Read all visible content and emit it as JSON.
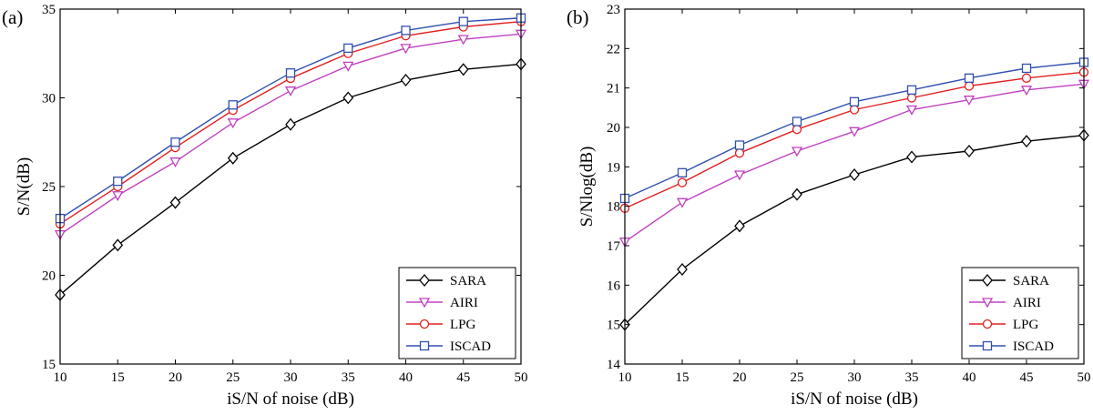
{
  "chart_data": [
    {
      "type": "line",
      "panel_label": "(a)",
      "xlabel": "iS/N of noise (dB)",
      "ylabel": "S/N(dB)",
      "xlim": [
        10,
        50
      ],
      "ylim": [
        15,
        35
      ],
      "xticks": [
        10,
        15,
        20,
        25,
        30,
        35,
        40,
        45,
        50
      ],
      "yticks": [
        15,
        20,
        25,
        30,
        35
      ],
      "legend_position": "bottom-right",
      "x": [
        10,
        15,
        20,
        25,
        30,
        35,
        40,
        45,
        50
      ],
      "series": [
        {
          "name": "SARA",
          "color": "#000000",
          "marker": "diamond",
          "values": [
            18.9,
            21.7,
            24.1,
            26.6,
            28.5,
            30.0,
            31.0,
            31.6,
            31.9
          ]
        },
        {
          "name": "AIRI",
          "color": "#c040c0",
          "marker": "triangle-down",
          "values": [
            22.3,
            24.5,
            26.4,
            28.6,
            30.4,
            31.8,
            32.8,
            33.3,
            33.6
          ]
        },
        {
          "name": "LPG",
          "color": "#e02020",
          "marker": "circle",
          "values": [
            22.9,
            25.0,
            27.2,
            29.3,
            31.1,
            32.5,
            33.5,
            34.0,
            34.3
          ]
        },
        {
          "name": "ISCAD",
          "color": "#3050b0",
          "marker": "square",
          "values": [
            23.2,
            25.3,
            27.5,
            29.6,
            31.4,
            32.8,
            33.8,
            34.3,
            34.5
          ]
        }
      ]
    },
    {
      "type": "line",
      "panel_label": "(b)",
      "xlabel": "iS/N of noise (dB)",
      "ylabel": "S/Nlog(dB)",
      "xlim": [
        10,
        50
      ],
      "ylim": [
        14,
        23
      ],
      "xticks": [
        10,
        15,
        20,
        25,
        30,
        35,
        40,
        45,
        50
      ],
      "yticks": [
        14,
        15,
        16,
        17,
        18,
        19,
        20,
        21,
        22,
        23
      ],
      "legend_position": "bottom-right",
      "x": [
        10,
        15,
        20,
        25,
        30,
        35,
        40,
        45,
        50
      ],
      "series": [
        {
          "name": "SARA",
          "color": "#000000",
          "marker": "diamond",
          "values": [
            15.0,
            16.4,
            17.5,
            18.3,
            18.8,
            19.25,
            19.4,
            19.65,
            19.8
          ]
        },
        {
          "name": "AIRI",
          "color": "#c040c0",
          "marker": "triangle-down",
          "values": [
            17.1,
            18.1,
            18.8,
            19.4,
            19.9,
            20.45,
            20.7,
            20.95,
            21.1
          ]
        },
        {
          "name": "LPG",
          "color": "#e02020",
          "marker": "circle",
          "values": [
            17.95,
            18.6,
            19.35,
            19.95,
            20.45,
            20.75,
            21.05,
            21.25,
            21.4
          ]
        },
        {
          "name": "ISCAD",
          "color": "#3050b0",
          "marker": "square",
          "values": [
            18.2,
            18.85,
            19.55,
            20.15,
            20.65,
            20.95,
            21.25,
            21.5,
            21.65
          ]
        }
      ]
    }
  ]
}
